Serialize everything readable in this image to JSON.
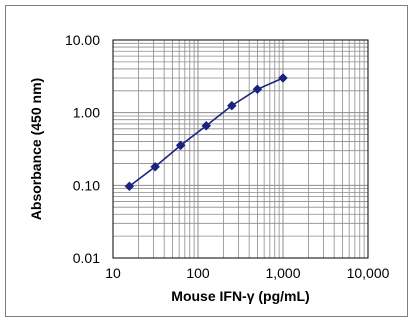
{
  "chart_data": {
    "type": "line",
    "title": "",
    "xlabel": "Mouse IFN-γ (pg/mL)",
    "ylabel": "Absorbance (450 nm)",
    "x_scale": "log",
    "y_scale": "log",
    "xlim": [
      10,
      10000
    ],
    "ylim": [
      0.01,
      10
    ],
    "x_ticks": [
      10,
      100,
      1000,
      10000
    ],
    "x_tick_labels": [
      "10",
      "100",
      "1,000",
      "10,000"
    ],
    "y_ticks": [
      0.01,
      0.1,
      1,
      10
    ],
    "y_tick_labels": [
      "0.01",
      "0.10",
      "1.00",
      "10.00"
    ],
    "grid": true,
    "legend": "none",
    "series": [
      {
        "color": "#1a237e",
        "marker": "diamond",
        "x": [
          15.6,
          31.3,
          62.5,
          125,
          250,
          500,
          1000
        ],
        "y": [
          0.097,
          0.18,
          0.355,
          0.66,
          1.25,
          2.1,
          3.0
        ]
      }
    ]
  }
}
